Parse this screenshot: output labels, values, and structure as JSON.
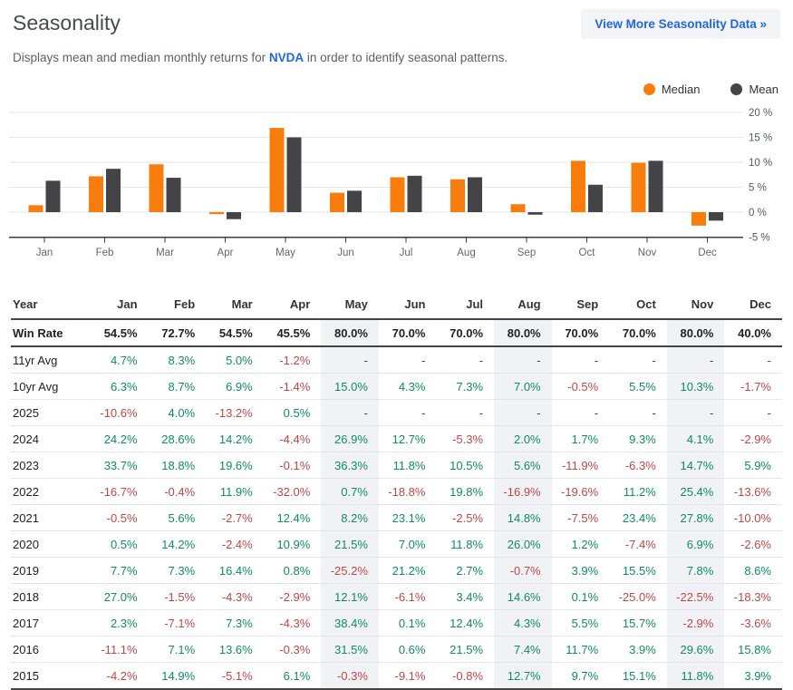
{
  "header": {
    "title": "Seasonality",
    "button_label": "View More Seasonality Data »"
  },
  "description": {
    "prefix": "Displays mean and median monthly returns for ",
    "ticker": "NVDA",
    "suffix": " in order to identify seasonal patterns."
  },
  "legend": {
    "items": [
      {
        "label": "Median",
        "color": "#f87d0d"
      },
      {
        "label": "Mean",
        "color": "#434348"
      }
    ]
  },
  "chart_data": {
    "type": "bar",
    "categories": [
      "Jan",
      "Feb",
      "Mar",
      "Apr",
      "May",
      "Jun",
      "Jul",
      "Aug",
      "Sep",
      "Oct",
      "Nov",
      "Dec"
    ],
    "series": [
      {
        "name": "Median",
        "color": "#f87d0d",
        "values": [
          1.4,
          7.2,
          9.6,
          -0.4,
          16.9,
          3.9,
          7.0,
          6.6,
          1.6,
          10.3,
          9.9,
          -2.7
        ]
      },
      {
        "name": "Mean",
        "color": "#434348",
        "values": [
          6.3,
          8.7,
          6.9,
          -1.4,
          15.0,
          4.3,
          7.3,
          7.0,
          -0.5,
          5.5,
          10.3,
          -1.7
        ]
      }
    ],
    "ylim": [
      -5,
      20
    ],
    "yticks": [
      20,
      15,
      10,
      5,
      0,
      -5
    ],
    "ytick_labels": [
      "20 %",
      "15 %",
      "10 %",
      "5 %",
      "0 %",
      "-5 %"
    ],
    "grid": true,
    "legend_position": "top-right"
  },
  "table": {
    "columns": [
      "Year",
      "Jan",
      "Feb",
      "Mar",
      "Apr",
      "May",
      "Jun",
      "Jul",
      "Aug",
      "Sep",
      "Oct",
      "Nov",
      "Dec"
    ],
    "highlight_columns": [
      "May",
      "Aug",
      "Nov"
    ],
    "rows": [
      {
        "label": "Win Rate",
        "bold": true,
        "values": [
          "54.5%",
          "72.7%",
          "54.5%",
          "45.5%",
          "80.0%",
          "70.0%",
          "70.0%",
          "80.0%",
          "70.0%",
          "70.0%",
          "80.0%",
          "40.0%"
        ]
      },
      {
        "label": "11yr Avg",
        "values": [
          "4.7%",
          "8.3%",
          "5.0%",
          "-1.2%",
          "-",
          "-",
          "-",
          "-",
          "-",
          "-",
          "-",
          "-"
        ]
      },
      {
        "label": "10yr Avg",
        "values": [
          "6.3%",
          "8.7%",
          "6.9%",
          "-1.4%",
          "15.0%",
          "4.3%",
          "7.3%",
          "7.0%",
          "-0.5%",
          "5.5%",
          "10.3%",
          "-1.7%"
        ]
      },
      {
        "label": "2025",
        "values": [
          "-10.6%",
          "4.0%",
          "-13.2%",
          "0.5%",
          "-",
          "-",
          "-",
          "-",
          "-",
          "-",
          "-",
          "-"
        ]
      },
      {
        "label": "2024",
        "values": [
          "24.2%",
          "28.6%",
          "14.2%",
          "-4.4%",
          "26.9%",
          "12.7%",
          "-5.3%",
          "2.0%",
          "1.7%",
          "9.3%",
          "4.1%",
          "-2.9%"
        ]
      },
      {
        "label": "2023",
        "values": [
          "33.7%",
          "18.8%",
          "19.6%",
          "-0.1%",
          "36.3%",
          "11.8%",
          "10.5%",
          "5.6%",
          "-11.9%",
          "-6.3%",
          "14.7%",
          "5.9%"
        ]
      },
      {
        "label": "2022",
        "values": [
          "-16.7%",
          "-0.4%",
          "11.9%",
          "-32.0%",
          "0.7%",
          "-18.8%",
          "19.8%",
          "-16.9%",
          "-19.6%",
          "11.2%",
          "25.4%",
          "-13.6%"
        ]
      },
      {
        "label": "2021",
        "values": [
          "-0.5%",
          "5.6%",
          "-2.7%",
          "12.4%",
          "8.2%",
          "23.1%",
          "-2.5%",
          "14.8%",
          "-7.5%",
          "23.4%",
          "27.8%",
          "-10.0%"
        ]
      },
      {
        "label": "2020",
        "values": [
          "0.5%",
          "14.2%",
          "-2.4%",
          "10.9%",
          "21.5%",
          "7.0%",
          "11.8%",
          "26.0%",
          "1.2%",
          "-7.4%",
          "6.9%",
          "-2.6%"
        ]
      },
      {
        "label": "2019",
        "values": [
          "7.7%",
          "7.3%",
          "16.4%",
          "0.8%",
          "-25.2%",
          "21.2%",
          "2.7%",
          "-0.7%",
          "3.9%",
          "15.5%",
          "7.8%",
          "8.6%"
        ]
      },
      {
        "label": "2018",
        "values": [
          "27.0%",
          "-1.5%",
          "-4.3%",
          "-2.9%",
          "12.1%",
          "-6.1%",
          "3.4%",
          "14.6%",
          "0.1%",
          "-25.0%",
          "-22.5%",
          "-18.3%"
        ]
      },
      {
        "label": "2017",
        "values": [
          "2.3%",
          "-7.1%",
          "7.3%",
          "-4.3%",
          "38.4%",
          "0.1%",
          "12.4%",
          "4.3%",
          "5.5%",
          "15.7%",
          "-2.9%",
          "-3.6%"
        ]
      },
      {
        "label": "2016",
        "values": [
          "-11.1%",
          "7.1%",
          "13.6%",
          "-0.3%",
          "31.5%",
          "0.6%",
          "21.5%",
          "7.4%",
          "11.7%",
          "3.9%",
          "29.6%",
          "15.8%"
        ]
      },
      {
        "label": "2015",
        "values": [
          "-4.2%",
          "14.9%",
          "-5.1%",
          "6.1%",
          "-0.3%",
          "-9.1%",
          "-0.8%",
          "12.7%",
          "9.7%",
          "15.1%",
          "11.8%",
          "3.9%"
        ]
      }
    ]
  },
  "colors": {
    "positive": "#0e8c62",
    "negative": "#c24646",
    "dash": "#444444",
    "highlight_bg": "#f1f2f6",
    "accent_blue": "#2268dd",
    "bar_median": "#f87d0d",
    "bar_mean": "#434348",
    "grid_line": "#e6e6e6",
    "axis_line": "#3b3b3b"
  }
}
